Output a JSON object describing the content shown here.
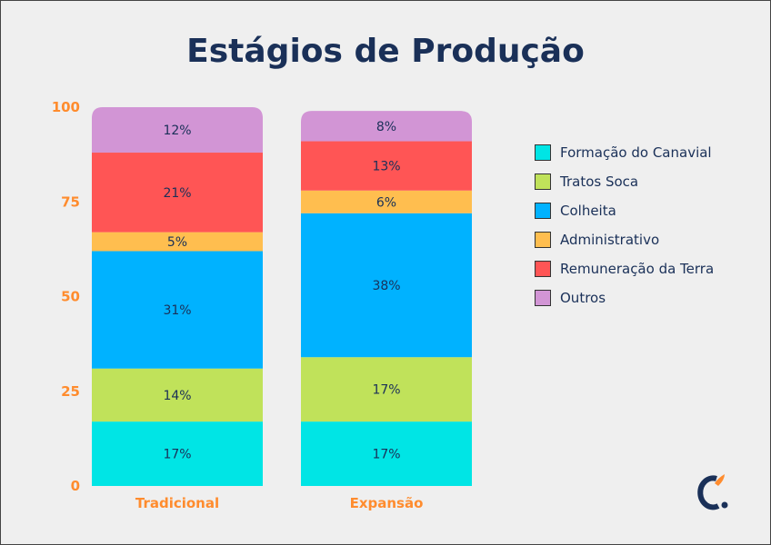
{
  "chart_data": {
    "type": "bar",
    "stacked": true,
    "title": "Estágios de Produção",
    "categories": [
      "Tradicional",
      "Expansão"
    ],
    "ylim": [
      0,
      100
    ],
    "yticks": [
      0,
      25,
      50,
      75,
      100
    ],
    "grid": false,
    "legend_position": "right",
    "series": [
      {
        "name": "Formação do Canavial",
        "color": "#00e5e5",
        "values": [
          17,
          17
        ],
        "labels": [
          "17%",
          "17%"
        ]
      },
      {
        "name": "Tratos Soca",
        "color": "#c0e25a",
        "values": [
          14,
          17
        ],
        "labels": [
          "14%",
          "17%"
        ]
      },
      {
        "name": "Colheita",
        "color": "#00b2ff",
        "values": [
          31,
          38
        ],
        "labels": [
          "31%",
          "38%"
        ]
      },
      {
        "name": "Administrativo",
        "color": "#ffbe4f",
        "values": [
          5,
          6
        ],
        "labels": [
          "5%",
          "6%"
        ]
      },
      {
        "name": "Remuneração da Terra",
        "color": "#ff5555",
        "values": [
          21,
          13
        ],
        "labels": [
          "21%",
          "13%"
        ]
      },
      {
        "name": "Outros",
        "color": "#d295d5",
        "values": [
          12,
          8
        ],
        "labels": [
          "12%",
          "8%"
        ]
      }
    ]
  },
  "colors": {
    "title": "#1a3058",
    "axis_labels": "#ff8c2e",
    "logo_primary": "#1a3058",
    "logo_accent": "#ff8c2e"
  },
  "logo": {
    "icon": "brand-c-logo"
  }
}
